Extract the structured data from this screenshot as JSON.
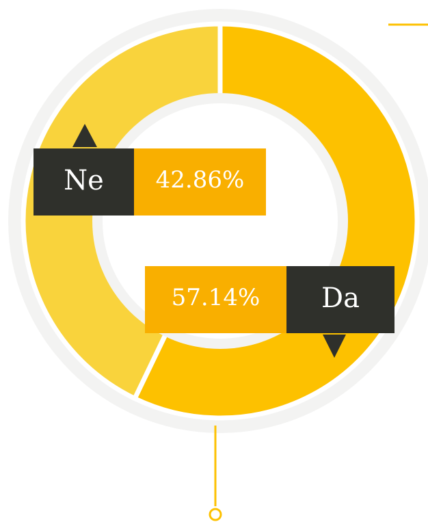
{
  "chart_data": {
    "type": "donut",
    "categories": [
      "Da",
      "Ne"
    ],
    "values": [
      57.14,
      42.86
    ],
    "value_labels": [
      "57.14%",
      "42.86%"
    ],
    "colors": [
      "#fdc100",
      "#f9d33c"
    ]
  }
}
